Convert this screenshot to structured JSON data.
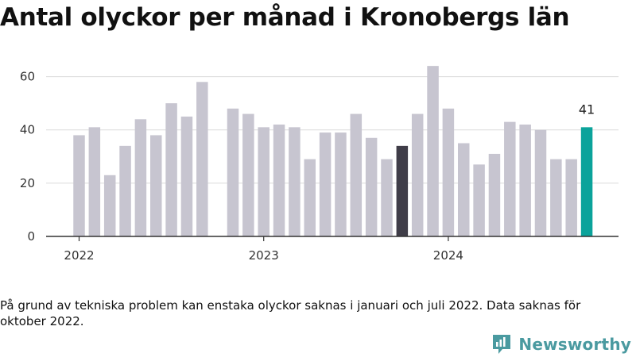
{
  "title": "Antal olyckor per månad i Kronobergs län",
  "note": "På grund av tekniska problem kan enstaka olyckor saknas i januari och juli 2022. Data saknas för oktober 2022.",
  "brand": {
    "name": "Newsworthy",
    "icon": "bar-chart-logo-icon",
    "color": "#4a9aa0"
  },
  "chart_data": {
    "type": "bar",
    "title": "Antal olyckor per månad i Kronobergs län",
    "xlabel": "",
    "ylabel": "",
    "ylim": [
      0,
      70
    ],
    "yticks": [
      "0",
      "20",
      "40",
      "60"
    ],
    "grid": true,
    "legend": "none",
    "year_labels": [
      {
        "label": "2022",
        "index": 0
      },
      {
        "label": "2023",
        "index": 12
      },
      {
        "label": "2024",
        "index": 24
      }
    ],
    "categories": [
      "2022-01",
      "2022-02",
      "2022-03",
      "2022-04",
      "2022-05",
      "2022-06",
      "2022-07",
      "2022-08",
      "2022-09",
      "2022-10",
      "2022-11",
      "2022-12",
      "2023-01",
      "2023-02",
      "2023-03",
      "2023-04",
      "2023-05",
      "2023-06",
      "2023-07",
      "2023-08",
      "2023-09",
      "2023-10",
      "2023-11",
      "2023-12",
      "2024-01",
      "2024-02",
      "2024-03",
      "2024-04",
      "2024-05",
      "2024-06",
      "2024-07",
      "2024-08",
      "2024-09",
      "2024-10"
    ],
    "values": [
      38,
      41,
      23,
      34,
      44,
      38,
      50,
      45,
      58,
      null,
      48,
      46,
      41,
      42,
      41,
      29,
      39,
      39,
      46,
      37,
      29,
      34,
      46,
      64,
      48,
      35,
      27,
      31,
      43,
      42,
      40,
      29,
      29,
      41
    ],
    "colors": {
      "default": "#c7c5d0",
      "highlight_dark": "#3f3d48",
      "highlight_latest": "#0ba39b"
    },
    "highlight_dark_index": 21,
    "highlight_latest_index": 33,
    "data_labels": [
      {
        "index": 33,
        "text": "41"
      }
    ]
  }
}
